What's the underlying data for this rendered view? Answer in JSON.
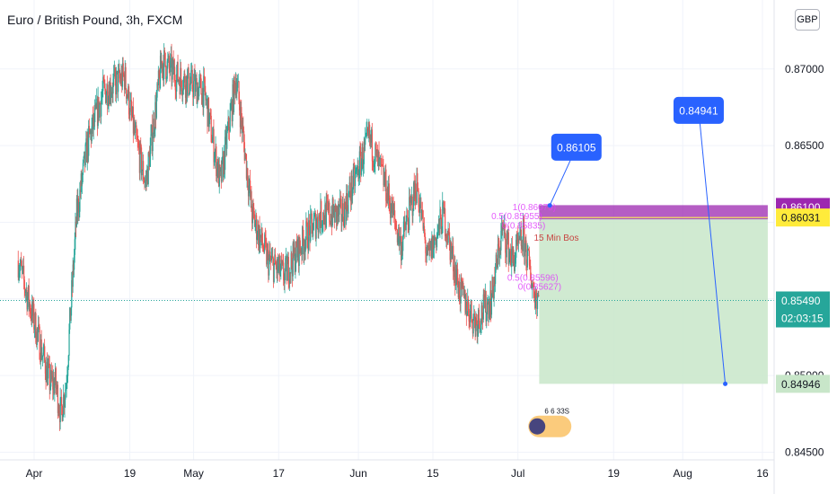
{
  "header": {
    "title": "Euro / British Pound, 3h, FXCM",
    "currency_button": "GBP"
  },
  "colors": {
    "up": "#26a69a",
    "down": "#ef5350",
    "long_target": "#c8e6c9",
    "stop": "#9c27b0",
    "callout": "#2962ff",
    "yellow": "#ffeb3b",
    "current": "#26a69a"
  },
  "chart_data": {
    "type": "candlestick",
    "symbol": "EURGBP",
    "timeframe": "3h",
    "ylim": [
      0.8445,
      0.8745
    ],
    "y_ticks": [
      0.845,
      0.85,
      0.855,
      0.86,
      0.865,
      0.87
    ],
    "y_tick_labels": [
      "0.84500",
      "0.85000",
      "0.85500",
      "0.86000",
      "0.86500",
      "0.87000"
    ],
    "x_ticks": [
      {
        "label": "Apr",
        "date": "2022-04-01"
      },
      {
        "label": "19",
        "date": "2022-04-19"
      },
      {
        "label": "May",
        "date": "2022-05-01"
      },
      {
        "label": "17",
        "date": "2022-05-17"
      },
      {
        "label": "Jun",
        "date": "2022-06-01"
      },
      {
        "label": "15",
        "date": "2022-06-15"
      },
      {
        "label": "Jul",
        "date": "2022-07-01"
      },
      {
        "label": "19",
        "date": "2022-07-19"
      },
      {
        "label": "Aug",
        "date": "2022-08-01"
      },
      {
        "label": "16",
        "date": "2022-08-16"
      }
    ],
    "price_path": [
      {
        "date": "2022-03-29",
        "price": 0.8575
      },
      {
        "date": "2022-04-01",
        "price": 0.8535
      },
      {
        "date": "2022-04-04",
        "price": 0.8495
      },
      {
        "date": "2022-04-05",
        "price": 0.8495
      },
      {
        "date": "2022-04-06",
        "price": 0.8475
      },
      {
        "date": "2022-04-07",
        "price": 0.8495
      },
      {
        "date": "2022-04-08",
        "price": 0.855
      },
      {
        "date": "2022-04-09",
        "price": 0.8605
      },
      {
        "date": "2022-04-11",
        "price": 0.865
      },
      {
        "date": "2022-04-14",
        "price": 0.8685
      },
      {
        "date": "2022-04-18",
        "price": 0.8695
      },
      {
        "date": "2022-04-20",
        "price": 0.8655
      },
      {
        "date": "2022-04-22",
        "price": 0.8625
      },
      {
        "date": "2022-04-25",
        "price": 0.8705
      },
      {
        "date": "2022-04-28",
        "price": 0.8695
      },
      {
        "date": "2022-05-03",
        "price": 0.8685
      },
      {
        "date": "2022-05-06",
        "price": 0.8625
      },
      {
        "date": "2022-05-09",
        "price": 0.8695
      },
      {
        "date": "2022-05-12",
        "price": 0.8605
      },
      {
        "date": "2022-05-15",
        "price": 0.8575
      },
      {
        "date": "2022-05-18",
        "price": 0.8565
      },
      {
        "date": "2022-05-22",
        "price": 0.859
      },
      {
        "date": "2022-05-25",
        "price": 0.8605
      },
      {
        "date": "2022-05-29",
        "price": 0.8605
      },
      {
        "date": "2022-06-03",
        "price": 0.8655
      },
      {
        "date": "2022-06-06",
        "price": 0.8625
      },
      {
        "date": "2022-06-09",
        "price": 0.8585
      },
      {
        "date": "2022-06-12",
        "price": 0.8625
      },
      {
        "date": "2022-06-14",
        "price": 0.8575
      },
      {
        "date": "2022-06-17",
        "price": 0.8605
      },
      {
        "date": "2022-06-20",
        "price": 0.8555
      },
      {
        "date": "2022-06-23",
        "price": 0.8535
      },
      {
        "date": "2022-06-26",
        "price": 0.855
      },
      {
        "date": "2022-06-28",
        "price": 0.8595
      },
      {
        "date": "2022-06-30",
        "price": 0.8575
      },
      {
        "date": "2022-07-02",
        "price": 0.859
      },
      {
        "date": "2022-07-04",
        "price": 0.8555
      },
      {
        "date": "2022-07-05",
        "price": 0.855
      }
    ],
    "current_price": {
      "value": 0.8549,
      "label": "0.85490",
      "countdown": "02:03:15"
    },
    "position_tool": {
      "type": "long",
      "start_date": "2022-07-05",
      "end_date": "2022-08-17",
      "entry": 0.86031,
      "entry_label": "0.86031",
      "stop": 0.861,
      "stop_label": "0.86100",
      "target": 0.84946,
      "target_label": "0.84946"
    },
    "callouts": [
      {
        "label": "0.86105",
        "anchor_date": "2022-07-07",
        "anchor_price": 0.8611,
        "box_date": "2022-07-12",
        "box_price": 0.8649
      },
      {
        "label": "0.84941",
        "anchor_date": "2022-08-09",
        "anchor_price": 0.84946,
        "box_date": "2022-08-04",
        "box_price": 0.8673
      }
    ],
    "annotations": [
      {
        "text": "1(0.86079)",
        "date": "2022-06-30",
        "price": 0.8608
      },
      {
        "text": "0.5(0.85955)",
        "date": "2022-06-26",
        "price": 0.8602
      },
      {
        "text": "0(0.85835)",
        "date": "2022-06-28",
        "price": 0.8596
      },
      {
        "text": "15 Min Bos",
        "date": "2022-07-04",
        "price": 0.8588
      },
      {
        "text": "0.5(0.85596)",
        "date": "2022-06-29",
        "price": 0.8562
      },
      {
        "text": "0(0.85627)",
        "date": "2022-07-01",
        "price": 0.8556
      }
    ],
    "watermark": "6 6 33S"
  }
}
